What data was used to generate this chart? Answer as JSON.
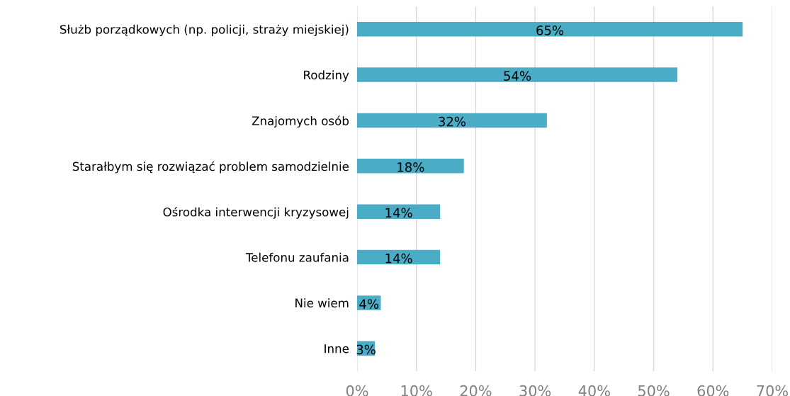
{
  "chart_data": {
    "type": "bar",
    "orientation": "horizontal",
    "categories": [
      "Służb porządkowych (np. policji, straży miejskiej)",
      "Rodziny",
      "Znajomych osób",
      "Starałbym się rozwiązać problem samodzielnie",
      "Ośrodka interwencji kryzysowej",
      "Telefonu zaufania",
      "Nie wiem",
      "Inne"
    ],
    "values": [
      65,
      54,
      32,
      18,
      14,
      14,
      4,
      3
    ],
    "value_labels": [
      "65%",
      "54%",
      "32%",
      "18%",
      "14%",
      "14%",
      "4%",
      "3%"
    ],
    "color": "#4bacc6",
    "xlim": [
      0,
      70
    ],
    "xticks": [
      {
        "value": 0,
        "label": "0%"
      },
      {
        "value": 10,
        "label": "10%"
      },
      {
        "value": 20,
        "label": "20%"
      },
      {
        "value": 30,
        "label": "30%"
      },
      {
        "value": 40,
        "label": "40%"
      },
      {
        "value": 50,
        "label": "50%"
      },
      {
        "value": 60,
        "label": "60%"
      },
      {
        "value": 70,
        "label": "70%"
      }
    ],
    "grid": "x"
  }
}
